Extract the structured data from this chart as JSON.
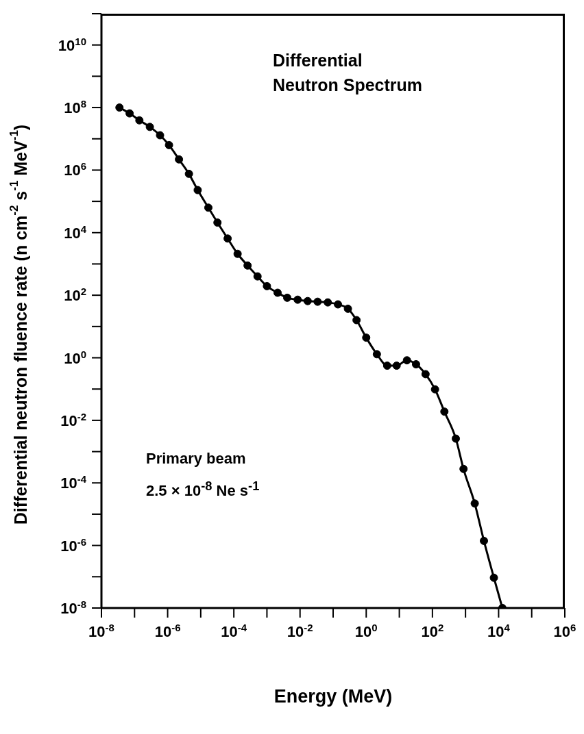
{
  "chart_data": {
    "type": "line",
    "title": "Differential Neutron Spectrum",
    "xlabel": "Energy (MeV)",
    "ylabel": "Differential neutron fluence rate (n cm$^{-2}$ s$^{-1}$ MeV$^{-1}$)",
    "annotations": [
      "Primary beam",
      "2.5 × 10$^{-8}$ Ne s$^{-1}$"
    ],
    "x": [
      3.5e-08,
      7.1e-08,
      1.4e-07,
      2.9e-07,
      5.9e-07,
      1.1e-06,
      2.2e-06,
      4.4e-06,
      8.1e-06,
      1.7e-05,
      3.2e-05,
      6.5e-05,
      0.00013,
      0.00026,
      0.00052,
      0.001,
      0.0021,
      0.0041,
      0.0085,
      0.017,
      0.034,
      0.069,
      0.14,
      0.28,
      0.51,
      1.0,
      2.1,
      4.3,
      8.3,
      17,
      32,
      62,
      120,
      230,
      510,
      870,
      1900,
      3600,
      7200,
      13000
    ],
    "series": [
      {
        "color": "#000000",
        "values": [
          100000000.0,
          65000000.0,
          39000000.0,
          24000000.0,
          13000000.0,
          6300000.0,
          2200000.0,
          760000.0,
          230000.0,
          63000.0,
          21000.0,
          6500,
          2100,
          890,
          400,
          195,
          120,
          83,
          72,
          65,
          62,
          59,
          51,
          37,
          16,
          4.4,
          1.3,
          0.56,
          0.56,
          0.83,
          0.62,
          0.3,
          0.098,
          0.019,
          0.0026,
          0.00028,
          2.2e-05,
          1.4e-06,
          9.3e-08,
          1e-08
        ]
      }
    ],
    "log": "xy",
    "marker": "circle",
    "line_style": "solid",
    "xlim": [
      1e-08,
      1000000.0
    ],
    "xticks": [
      {
        "value": 1e-08,
        "label": "10$^{-8}$"
      },
      {
        "value": 1e-07,
        "label": null
      },
      {
        "value": 1e-06,
        "label": "10$^{-6}$"
      },
      {
        "value": 1e-05,
        "label": null
      },
      {
        "value": 0.0001,
        "label": "10$^{-4}$"
      },
      {
        "value": 0.001,
        "label": null
      },
      {
        "value": 0.01,
        "label": "10$^{-2}$"
      },
      {
        "value": 0.1,
        "label": null
      },
      {
        "value": 1,
        "label": "10$^{0}$"
      },
      {
        "value": 10,
        "label": null
      },
      {
        "value": 100,
        "label": "10$^{2}$"
      },
      {
        "value": 1000,
        "label": null
      },
      {
        "value": 10000,
        "label": "10$^{4}$"
      },
      {
        "value": 100000,
        "label": null
      },
      {
        "value": 1000000,
        "label": "10$^{6}$"
      }
    ],
    "ylim": [
      1e-08,
      100000000000.0
    ],
    "yticks": [
      {
        "value": 1e-08,
        "label": "10$^{-8}$"
      },
      {
        "value": 1e-07,
        "label": null
      },
      {
        "value": 1e-06,
        "label": "10$^{-6}$"
      },
      {
        "value": 1e-05,
        "label": null
      },
      {
        "value": 0.0001,
        "label": "10$^{-4}$"
      },
      {
        "value": 0.001,
        "label": null
      },
      {
        "value": 0.01,
        "label": "10$^{-2}$"
      },
      {
        "value": 0.1,
        "label": null
      },
      {
        "value": 1,
        "label": "10$^{0}$"
      },
      {
        "value": 10,
        "label": null
      },
      {
        "value": 100,
        "label": "10$^{2}$"
      },
      {
        "value": 1000,
        "label": null
      },
      {
        "value": 10000,
        "label": "10$^{4}$"
      },
      {
        "value": 100000,
        "label": null
      },
      {
        "value": 1000000,
        "label": "10$^{6}$"
      },
      {
        "value": 10000000.0,
        "label": null
      },
      {
        "value": 100000000.0,
        "label": "10$^{8}$"
      },
      {
        "value": 1000000000.0,
        "label": null
      },
      {
        "value": 10000000000.0,
        "label": "10$^{10}$"
      },
      {
        "value": 100000000000.0,
        "label": null
      }
    ]
  }
}
